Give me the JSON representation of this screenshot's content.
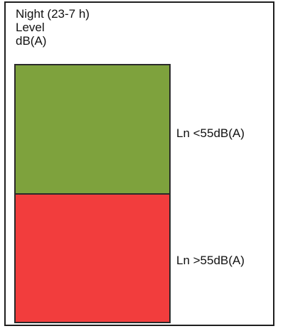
{
  "header": {
    "line1": "Night (23-7 h)",
    "line2": "Level",
    "line3": "dB(A)"
  },
  "legend": {
    "items": [
      {
        "label": "Ln <55dB(A)",
        "color": "#7ea23d"
      },
      {
        "label": "Ln >55dB(A)",
        "color": "#f23d3d"
      }
    ]
  }
}
